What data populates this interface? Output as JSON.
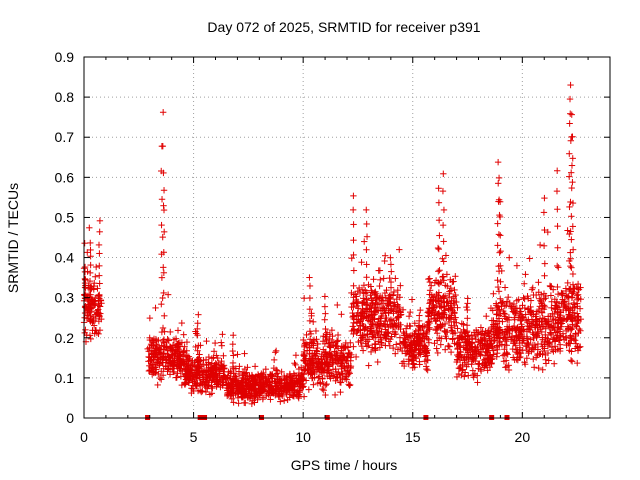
{
  "chart_data": {
    "type": "scatter",
    "title": "Day 072 of 2025, SRMTID for receiver p391",
    "xlabel": "GPS time / hours",
    "ylabel": "SRMTID / TECUs",
    "xlim": [
      0,
      24
    ],
    "ylim": [
      0,
      0.9
    ],
    "xticks": [
      "0",
      "5",
      "10",
      "15",
      "20"
    ],
    "yticks": [
      "0",
      "0.1",
      "0.2",
      "0.3",
      "0.4",
      "0.5",
      "0.6",
      "0.7",
      "0.8",
      "0.9"
    ],
    "grid": true,
    "marker": "+",
    "color": "#e00000",
    "segments": [
      {
        "x0": 0.0,
        "x1": 0.8,
        "base": 0.28,
        "spread": 0.08,
        "peaks": [
          [
            0.05,
            0.37
          ],
          [
            0.7,
            0.49
          ],
          [
            0.3,
            0.44
          ]
        ]
      },
      {
        "x0": 2.9,
        "x1": 4.6,
        "base": 0.15,
        "spread": 0.05,
        "peaks": [
          [
            3.6,
            0.76
          ],
          [
            3.55,
            0.68
          ],
          [
            3.65,
            0.57
          ]
        ]
      },
      {
        "x0": 4.6,
        "x1": 6.5,
        "base": 0.11,
        "spread": 0.04,
        "peaks": [
          [
            5.2,
            0.26
          ]
        ]
      },
      {
        "x0": 6.5,
        "x1": 10.0,
        "base": 0.08,
        "spread": 0.035,
        "peaks": [
          [
            6.8,
            0.2
          ]
        ]
      },
      {
        "x0": 10.0,
        "x1": 12.2,
        "base": 0.14,
        "spread": 0.06,
        "peaks": [
          [
            10.3,
            0.35
          ],
          [
            11.0,
            0.3
          ]
        ]
      },
      {
        "x0": 12.2,
        "x1": 14.5,
        "base": 0.25,
        "spread": 0.08,
        "peaks": [
          [
            12.3,
            0.56
          ],
          [
            12.9,
            0.52
          ],
          [
            14.0,
            0.4
          ]
        ]
      },
      {
        "x0": 14.5,
        "x1": 15.7,
        "base": 0.18,
        "spread": 0.05,
        "peaks": [
          [
            15.3,
            0.25
          ]
        ]
      },
      {
        "x0": 15.7,
        "x1": 17.0,
        "base": 0.26,
        "spread": 0.08,
        "peaks": [
          [
            16.4,
            0.61
          ],
          [
            16.2,
            0.57
          ]
        ]
      },
      {
        "x0": 17.0,
        "x1": 18.6,
        "base": 0.17,
        "spread": 0.06,
        "peaks": [
          [
            17.5,
            0.3
          ]
        ]
      },
      {
        "x0": 18.6,
        "x1": 20.4,
        "base": 0.22,
        "spread": 0.08,
        "peaks": [
          [
            18.9,
            0.64
          ],
          [
            18.95,
            0.6
          ],
          [
            19.0,
            0.54
          ]
        ]
      },
      {
        "x0": 20.4,
        "x1": 21.8,
        "base": 0.23,
        "spread": 0.09,
        "peaks": [
          [
            21.0,
            0.55
          ],
          [
            21.6,
            0.62
          ]
        ]
      },
      {
        "x0": 21.8,
        "x1": 22.7,
        "base": 0.25,
        "spread": 0.1,
        "peaks": [
          [
            22.2,
            0.83
          ],
          [
            22.15,
            0.8
          ],
          [
            22.25,
            0.76
          ],
          [
            22.3,
            0.7
          ]
        ]
      }
    ],
    "zero_marks": [
      2.9,
      5.3,
      5.5,
      8.1,
      11.1,
      15.6,
      18.6,
      19.3
    ]
  }
}
